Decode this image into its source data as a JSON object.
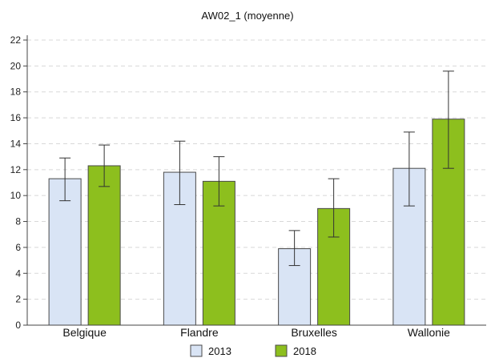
{
  "chart_data": {
    "type": "bar",
    "title": "AW02_1 (moyenne)",
    "categories": [
      "Belgique",
      "Flandre",
      "Bruxelles",
      "Wallonie"
    ],
    "series": [
      {
        "name": "2013",
        "color": "#d9e4f5",
        "values": [
          11.3,
          11.8,
          5.9,
          12.1
        ],
        "err_low": [
          9.6,
          9.3,
          4.6,
          9.2
        ],
        "err_high": [
          12.9,
          14.2,
          7.3,
          14.9
        ]
      },
      {
        "name": "2018",
        "color": "#8dbf1e",
        "values": [
          12.3,
          11.1,
          9.0,
          15.9
        ],
        "err_low": [
          10.7,
          9.2,
          6.8,
          12.1
        ],
        "err_high": [
          13.9,
          13.0,
          11.3,
          19.6
        ]
      }
    ],
    "xlabel": "",
    "ylabel": "",
    "ylim": [
      0,
      22
    ],
    "yticks": [
      0,
      2,
      4,
      6,
      8,
      10,
      12,
      14,
      16,
      18,
      20,
      22
    ],
    "grid": true,
    "legend_position": "bottom"
  }
}
